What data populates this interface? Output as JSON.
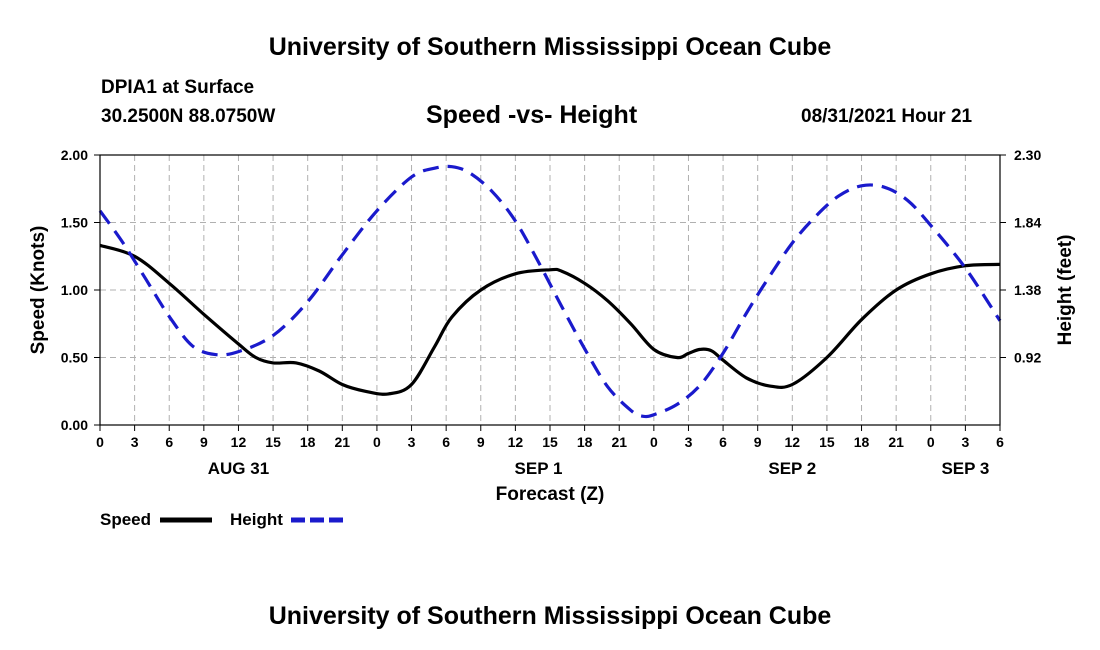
{
  "header": {
    "title": "University of Southern Mississippi Ocean Cube",
    "station": "DPIA1 at Surface",
    "location": "30.2500N  88.0750W",
    "chart_title": "Speed -vs- Height",
    "datetime": "08/31/2021 Hour 21"
  },
  "footer": {
    "title": "University of Southern Mississippi Ocean Cube"
  },
  "legend": {
    "speed_label": "Speed",
    "height_label": "Height"
  },
  "colors": {
    "speed": "#000000",
    "height": "#1a1acc",
    "grid": "#b0b0b0"
  },
  "chart_data": {
    "type": "line",
    "title": "Speed -vs- Height",
    "xlabel": "Forecast (Z)",
    "ylabel": "Speed (Knots)",
    "y2label": "Height (feet)",
    "xlim": [
      0,
      78
    ],
    "ylim": [
      0,
      2
    ],
    "y2lim": [
      0.46,
      2.3
    ],
    "x_ticks": [
      0,
      3,
      6,
      9,
      12,
      15,
      18,
      21,
      24,
      27,
      30,
      33,
      36,
      39,
      42,
      45,
      48,
      51,
      54,
      57,
      60,
      63,
      66,
      69,
      72,
      75,
      78
    ],
    "x_tick_labels": [
      "0",
      "3",
      "6",
      "9",
      "12",
      "15",
      "18",
      "21",
      "0",
      "3",
      "6",
      "9",
      "12",
      "15",
      "18",
      "21",
      "0",
      "3",
      "6",
      "9",
      "12",
      "15",
      "18",
      "21",
      "0",
      "3",
      "6"
    ],
    "day_labels": [
      {
        "x": 12,
        "label": "AUG 31"
      },
      {
        "x": 38,
        "label": "SEP 1"
      },
      {
        "x": 60,
        "label": "SEP 2"
      },
      {
        "x": 75,
        "label": "SEP 3"
      }
    ],
    "y_ticks": [
      0,
      0.5,
      1.0,
      1.5,
      2.0
    ],
    "y_tick_labels": [
      "0.00",
      "0.50",
      "1.00",
      "1.50",
      "2.00"
    ],
    "y2_ticks": [
      0.92,
      1.38,
      1.84,
      2.3
    ],
    "y2_tick_labels": [
      "0.92",
      "1.38",
      "1.84",
      "2.30"
    ],
    "grid": true,
    "series": [
      {
        "name": "Speed",
        "axis": "left",
        "style": "solid",
        "x": [
          0,
          3,
          6,
          9,
          12,
          13.5,
          15,
          17,
          19,
          21,
          23,
          25,
          27,
          29,
          30.5,
          33,
          36,
          39,
          40,
          42,
          44,
          46,
          48,
          50,
          51,
          52,
          53,
          54,
          56,
          58,
          60,
          63,
          66,
          69,
          72,
          75,
          78
        ],
        "values": [
          1.33,
          1.25,
          1.05,
          0.82,
          0.6,
          0.5,
          0.46,
          0.46,
          0.4,
          0.3,
          0.25,
          0.23,
          0.3,
          0.58,
          0.8,
          1.0,
          1.12,
          1.15,
          1.14,
          1.05,
          0.92,
          0.75,
          0.56,
          0.5,
          0.53,
          0.56,
          0.55,
          0.48,
          0.35,
          0.29,
          0.3,
          0.5,
          0.78,
          1.0,
          1.12,
          1.18,
          1.19
        ]
      },
      {
        "name": "Height",
        "axis": "right",
        "style": "dashed",
        "x": [
          0,
          2,
          4,
          6,
          8,
          10,
          12,
          15,
          18,
          21,
          24,
          27,
          29,
          30.5,
          32,
          34,
          36,
          38,
          40,
          42,
          44,
          46,
          47,
          48,
          50,
          52,
          54,
          56,
          58,
          60,
          62,
          64,
          66,
          68,
          70,
          72,
          75,
          78
        ],
        "values": [
          1.92,
          1.7,
          1.45,
          1.2,
          1.0,
          0.94,
          0.96,
          1.07,
          1.3,
          1.62,
          1.92,
          2.15,
          2.21,
          2.22,
          2.18,
          2.05,
          1.85,
          1.57,
          1.27,
          0.98,
          0.72,
          0.56,
          0.52,
          0.53,
          0.6,
          0.73,
          0.95,
          1.22,
          1.47,
          1.7,
          1.88,
          2.02,
          2.09,
          2.08,
          1.99,
          1.82,
          1.53,
          1.17
        ]
      }
    ]
  }
}
